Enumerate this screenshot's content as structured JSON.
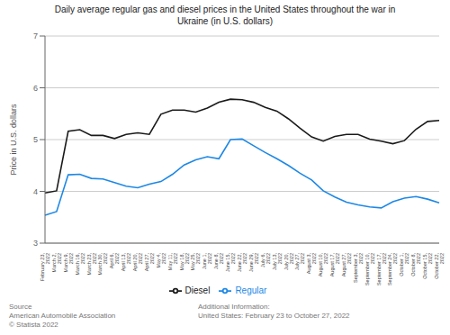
{
  "chart_data": {
    "type": "line",
    "title": "Daily average regular gas and diesel prices in the United States throughout the war in\nUkraine (in U.S. dollars)",
    "y_label": "Price in U.S. dollars",
    "categories": [
      "February 23,\n2022",
      "March 2,\n2022",
      "March 9,\n2022",
      "March 16,\n2022",
      "March 23,\n2022",
      "March 30,\n2022",
      "April 6,\n2022",
      "April 13,\n2022",
      "April 20,\n2022",
      "April 27,\n2022",
      "May 4,\n2022",
      "May 11,\n2022",
      "May 18,\n2022",
      "May 25,\n2022",
      "June 1,\n2022",
      "June 8,\n2022",
      "June 15,\n2022",
      "June 22,\n2022",
      "June 29,\n2022",
      "July 6,\n2022",
      "July 13,\n2022",
      "July 20,\n2022",
      "July 27,\n2022",
      "August 3,\n2022",
      "August 10,\n2022",
      "August 17,\n2022",
      "August 27,\n2022",
      "September 3,\n2022",
      "September 10,\n2022",
      "September 17,\n2022",
      "September 24,\n2022",
      "October 1,\n2022",
      "October 8,\n2022",
      "October 15,\n2022",
      "October 22,\n2022"
    ],
    "series": [
      {
        "name": "Regular",
        "color": "#1e88e5",
        "values": [
          3.54,
          3.61,
          4.32,
          4.33,
          4.25,
          4.24,
          4.17,
          4.1,
          4.07,
          4.14,
          4.19,
          4.33,
          4.51,
          4.61,
          4.67,
          4.63,
          5.0,
          5.01,
          4.88,
          4.75,
          4.63,
          4.5,
          4.35,
          4.22,
          4.01,
          3.89,
          3.79,
          3.74,
          3.7,
          3.68,
          3.8,
          3.87,
          3.9,
          3.85,
          3.78
        ]
      },
      {
        "name": "Diesel",
        "color": "#1a1a1a",
        "values": [
          3.97,
          4.01,
          5.16,
          5.19,
          5.08,
          5.08,
          5.02,
          5.1,
          5.13,
          5.1,
          5.49,
          5.57,
          5.57,
          5.53,
          5.61,
          5.72,
          5.78,
          5.77,
          5.72,
          5.62,
          5.55,
          5.4,
          5.22,
          5.05,
          4.97,
          5.06,
          5.1,
          5.1,
          5.01,
          4.97,
          4.92,
          4.98,
          5.2,
          5.35,
          5.37
        ]
      }
    ],
    "ylim": [
      3.0,
      7.0
    ],
    "yticks": [
      3,
      4,
      5,
      6,
      7
    ],
    "grid": true,
    "legend": "bottom",
    "annotations": [
      "Source\nAmerican Automobile Association\n© Statista 2022",
      "Additional Information:\nUnited States: February 23 to October 27, 2022"
    ]
  }
}
